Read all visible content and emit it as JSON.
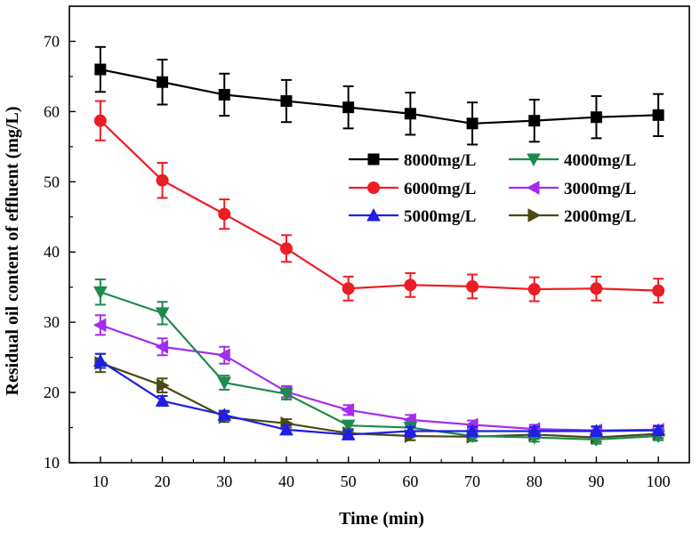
{
  "chart_data": {
    "type": "line",
    "title": "",
    "xlabel": "Time (min)",
    "ylabel": "Residual oil content of effluent (mg/L)",
    "xlim": [
      5,
      105
    ],
    "ylim": [
      10,
      75
    ],
    "x": [
      10,
      20,
      30,
      40,
      50,
      60,
      70,
      80,
      90,
      100
    ],
    "xticks": [
      "10",
      "20",
      "30",
      "40",
      "50",
      "60",
      "70",
      "80",
      "90",
      "100"
    ],
    "yticks": [
      "10",
      "20",
      "30",
      "40",
      "50",
      "60",
      "70"
    ],
    "grid": false,
    "legend_position": "upper-right",
    "series": [
      {
        "name": "8000mg/L",
        "color": "#000000",
        "marker": "square",
        "values": [
          66.0,
          64.2,
          62.4,
          61.5,
          60.6,
          59.7,
          58.3,
          58.7,
          59.2,
          59.5
        ],
        "errors": [
          3.2,
          3.2,
          3.0,
          3.0,
          3.0,
          3.0,
          3.0,
          3.0,
          3.0,
          3.0
        ]
      },
      {
        "name": "6000mg/L",
        "color": "#ee1c24",
        "marker": "circle",
        "values": [
          58.7,
          50.2,
          45.4,
          40.5,
          34.8,
          35.3,
          35.1,
          34.7,
          34.8,
          34.5
        ],
        "errors": [
          2.8,
          2.5,
          2.1,
          1.9,
          1.7,
          1.7,
          1.7,
          1.7,
          1.7,
          1.7
        ]
      },
      {
        "name": "5000mg/L",
        "color": "#1f1fe6",
        "marker": "triangle-up",
        "values": [
          24.5,
          18.8,
          16.8,
          14.7,
          14.0,
          14.5,
          14.5,
          14.5,
          14.5,
          14.6
        ],
        "errors": [
          1.0,
          0.7,
          0.6,
          0.6,
          0.6,
          0.6,
          0.6,
          0.6,
          0.6,
          0.6
        ]
      },
      {
        "name": "4000mg/L",
        "color": "#1e8a4c",
        "marker": "triangle-down",
        "values": [
          34.3,
          31.3,
          21.4,
          19.8,
          15.3,
          15.0,
          13.8,
          13.6,
          13.3,
          13.8
        ],
        "errors": [
          1.8,
          1.6,
          1.0,
          0.8,
          0.6,
          0.6,
          0.6,
          0.6,
          0.6,
          0.6
        ]
      },
      {
        "name": "3000mg/L",
        "color": "#a32cf0",
        "marker": "triangle-left",
        "values": [
          29.6,
          26.5,
          25.3,
          20.1,
          17.5,
          16.1,
          15.4,
          14.8,
          14.6,
          14.7
        ],
        "errors": [
          1.4,
          1.2,
          1.2,
          0.8,
          0.7,
          0.7,
          0.6,
          0.6,
          0.6,
          0.6
        ]
      },
      {
        "name": "2000mg/L",
        "color": "#4a4a12",
        "marker": "triangle-right",
        "values": [
          24.2,
          21.0,
          16.5,
          15.6,
          14.2,
          13.8,
          13.7,
          14.0,
          13.6,
          14.1
        ],
        "errors": [
          1.3,
          1.0,
          0.7,
          0.6,
          0.6,
          0.6,
          0.6,
          0.6,
          0.6,
          0.6
        ]
      }
    ]
  }
}
